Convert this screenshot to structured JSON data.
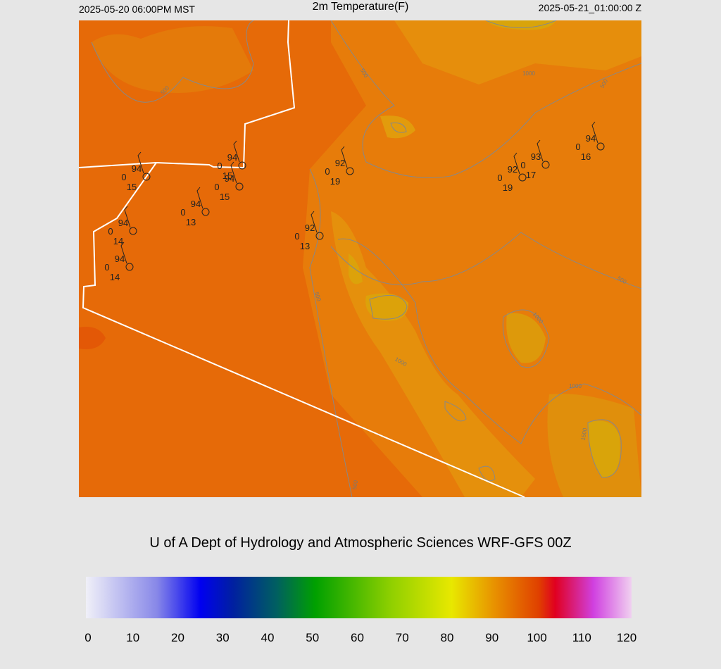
{
  "header": {
    "left": "2025-05-20 06:00PM MST",
    "title": "2m Temperature(F)",
    "right": "2025-05-21_01:00:00 Z"
  },
  "stations": [
    {
      "temp": 94,
      "mid": 0,
      "dew": 15
    },
    {
      "temp": 94,
      "mid": 0,
      "dew": 15
    },
    {
      "temp": 94,
      "mid": 0,
      "dew": 15
    },
    {
      "temp": 94,
      "mid": 0,
      "dew": 13
    },
    {
      "temp": 94,
      "mid": 0,
      "dew": 14
    },
    {
      "temp": 94,
      "mid": 0,
      "dew": 14
    },
    {
      "temp": 92,
      "mid": 0,
      "dew": 19
    },
    {
      "temp": 92,
      "mid": 0,
      "dew": 13
    },
    {
      "temp": 92,
      "mid": 0,
      "dew": 19
    },
    {
      "temp": 93,
      "mid": 0,
      "dew": 17
    },
    {
      "temp": 94,
      "mid": 0,
      "dew": 16
    }
  ],
  "contour_labels": [
    "500",
    "1000",
    "500",
    "500",
    "500",
    "500",
    "1000",
    "1000",
    "1000",
    "1500",
    "500"
  ],
  "credit": "U of A Dept of Hydrology and Atmospheric Sciences WRF-GFS 00Z",
  "colorbar": {
    "ticks": [
      0,
      10,
      20,
      30,
      40,
      50,
      60,
      70,
      80,
      90,
      100,
      110,
      120
    ]
  }
}
